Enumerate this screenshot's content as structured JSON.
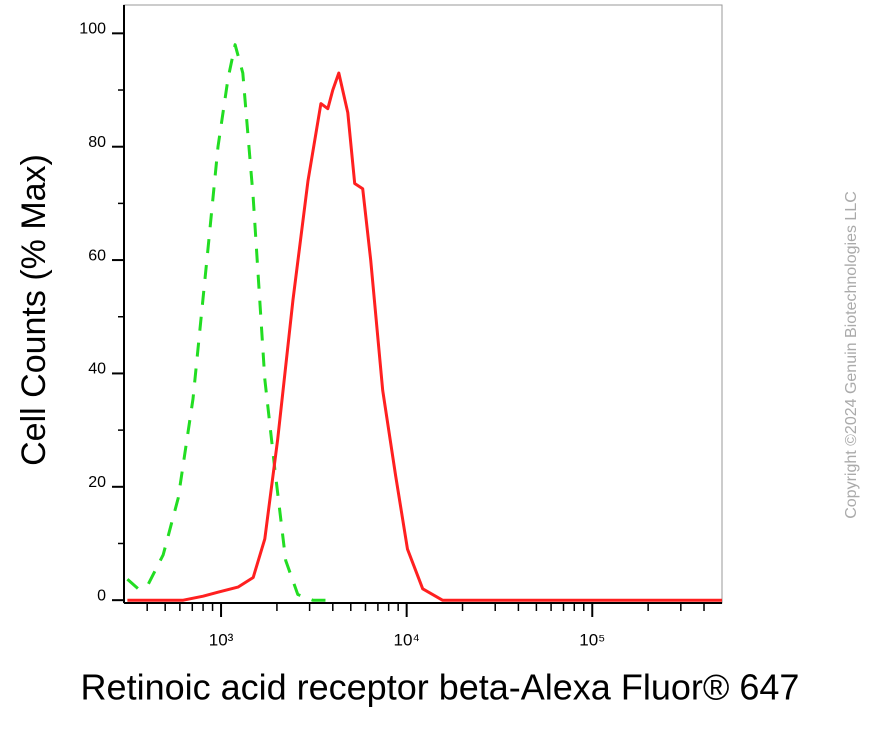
{
  "chart_data": {
    "type": "line",
    "xlabel": "Retinoic acid receptor beta-Alexa Fluor® 647",
    "ylabel": "Cell Counts (% Max)",
    "watermark": "Copyright ©2024 Genuin Biotechnologies LLC",
    "xscale": "log",
    "xlim": [
      300,
      500000
    ],
    "ylim": [
      -0.5,
      105
    ],
    "xticks": [
      {
        "value": 1000,
        "label": "10³"
      },
      {
        "value": 10000,
        "label": "10⁴"
      },
      {
        "value": 100000,
        "label": "10⁵"
      }
    ],
    "xminorticks": [
      400,
      500,
      600,
      700,
      800,
      900,
      2000,
      3000,
      4000,
      5000,
      6000,
      7000,
      8000,
      9000,
      20000,
      30000,
      40000,
      50000,
      60000,
      70000,
      80000,
      90000,
      200000,
      300000,
      400000
    ],
    "yticks": [
      0,
      20,
      40,
      60,
      80,
      100
    ],
    "yminorticks": [
      10,
      30,
      50,
      70,
      90
    ],
    "series": [
      {
        "color": "#22dd22",
        "dashed": true,
        "x": [
          313,
          358,
          405,
          488,
          588,
          706,
          851,
          963,
          1090,
          1190,
          1310,
          1490,
          1720,
          1950,
          2230,
          2590,
          3120,
          4000
        ],
        "values": [
          3.7,
          2,
          2.8,
          8,
          18,
          35.5,
          62,
          80,
          92,
          98,
          93,
          71,
          39,
          23,
          7,
          1,
          0,
          0
        ]
      },
      {
        "color": "#ff2020",
        "dashed": false,
        "x": [
          313,
          625,
          800,
          963,
          1234,
          1490,
          1720,
          2020,
          2440,
          2940,
          3450,
          3760,
          4000,
          4310,
          4820,
          5250,
          5800,
          6400,
          7430,
          8720,
          10100,
          12200,
          15600,
          32800,
          500000
        ],
        "values": [
          0,
          0,
          0.7,
          1.4,
          2.3,
          4,
          10.8,
          28.4,
          53,
          74,
          87.6,
          86.7,
          90,
          93,
          86,
          73.5,
          72.6,
          60,
          37,
          22,
          9,
          2,
          0,
          0,
          0
        ]
      }
    ]
  }
}
